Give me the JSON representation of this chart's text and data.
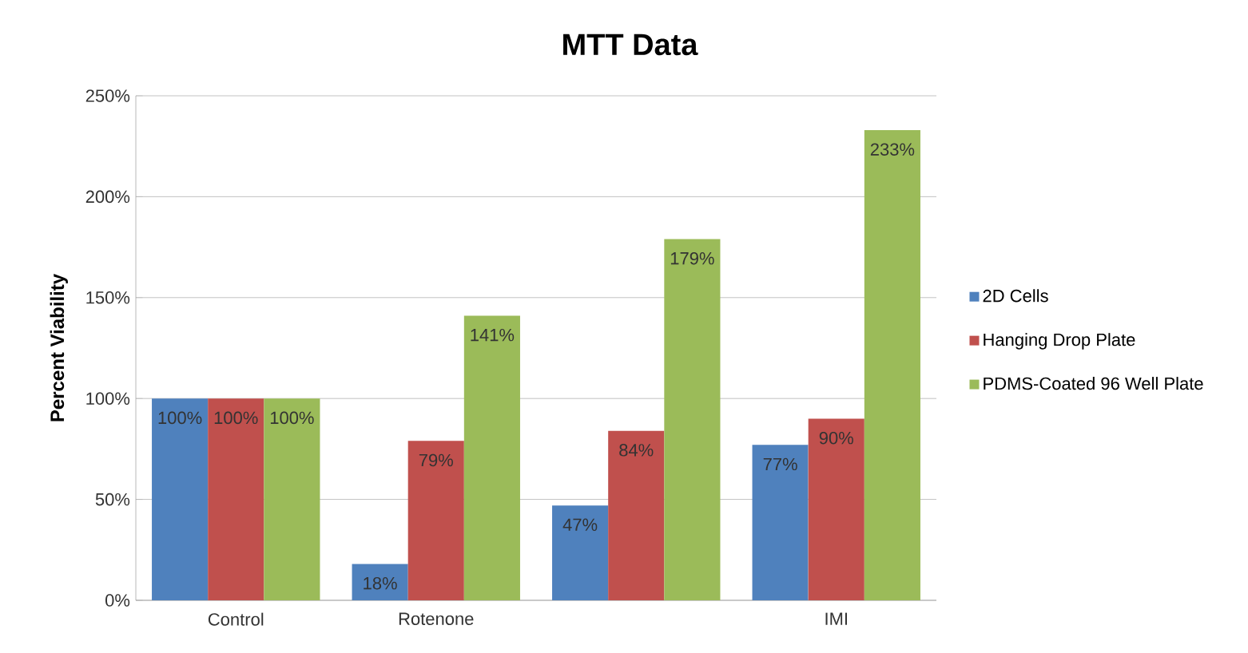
{
  "chart_data": {
    "type": "bar",
    "title": "MTT Data",
    "ylabel": "Percent Viability",
    "categories": [
      "Control",
      "Rotenone",
      null,
      "IMI"
    ],
    "series": [
      {
        "name": "2D Cells",
        "color": "#4f81bd",
        "values": [
          100,
          18,
          47,
          77
        ],
        "value_labels": [
          "100%",
          "18%",
          "47%",
          "77%"
        ]
      },
      {
        "name": "Hanging Drop Plate",
        "color": "#c0504d",
        "values": [
          100,
          79,
          84,
          90
        ],
        "value_labels": [
          "100%",
          "79%",
          "84%",
          "90%"
        ]
      },
      {
        "name": "PDMS-Coated 96 Well Plate",
        "color": "#9bbb59",
        "values": [
          100,
          141,
          179,
          233
        ],
        "value_labels": [
          "100%",
          "141%",
          "179%",
          "233%"
        ]
      }
    ],
    "ylim": [
      0,
      250
    ],
    "yticks": [
      {
        "value": 0,
        "label": "0%"
      },
      {
        "value": 50,
        "label": "50%"
      },
      {
        "value": 100,
        "label": "100%"
      },
      {
        "value": 150,
        "label": "150%"
      },
      {
        "value": 200,
        "label": "200%"
      },
      {
        "value": 250,
        "label": "250%"
      }
    ],
    "grid": "y",
    "legend": "right"
  }
}
